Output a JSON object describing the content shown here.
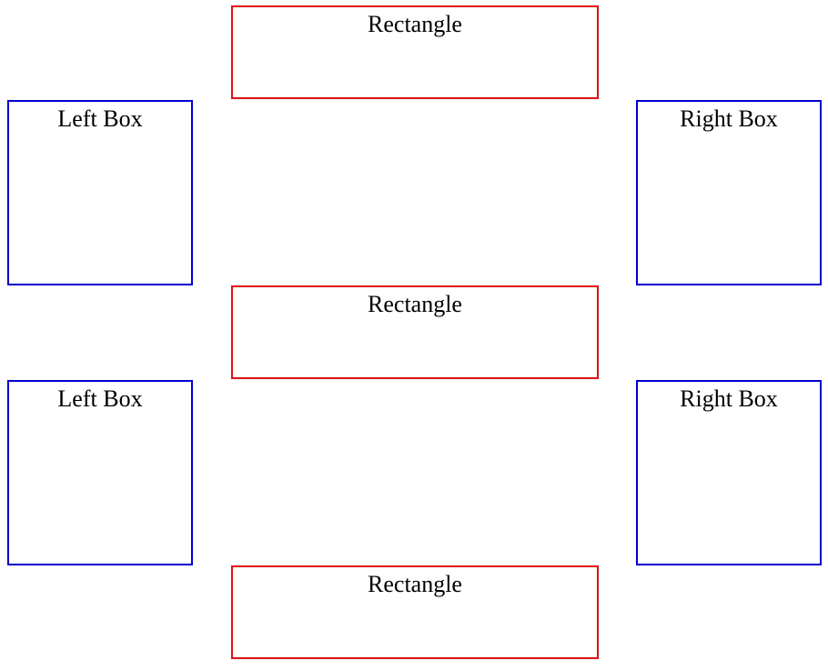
{
  "colors": {
    "rectangle_border": "#dd1111",
    "side_box_border": "#0000cc",
    "background": "#ffffff",
    "text": "#000000"
  },
  "rectangles": [
    {
      "label": "Rectangle"
    },
    {
      "label": "Rectangle"
    },
    {
      "label": "Rectangle"
    }
  ],
  "left_boxes": [
    {
      "label": "Left Box"
    },
    {
      "label": "Left Box"
    }
  ],
  "right_boxes": [
    {
      "label": "Right Box"
    },
    {
      "label": "Right Box"
    }
  ]
}
